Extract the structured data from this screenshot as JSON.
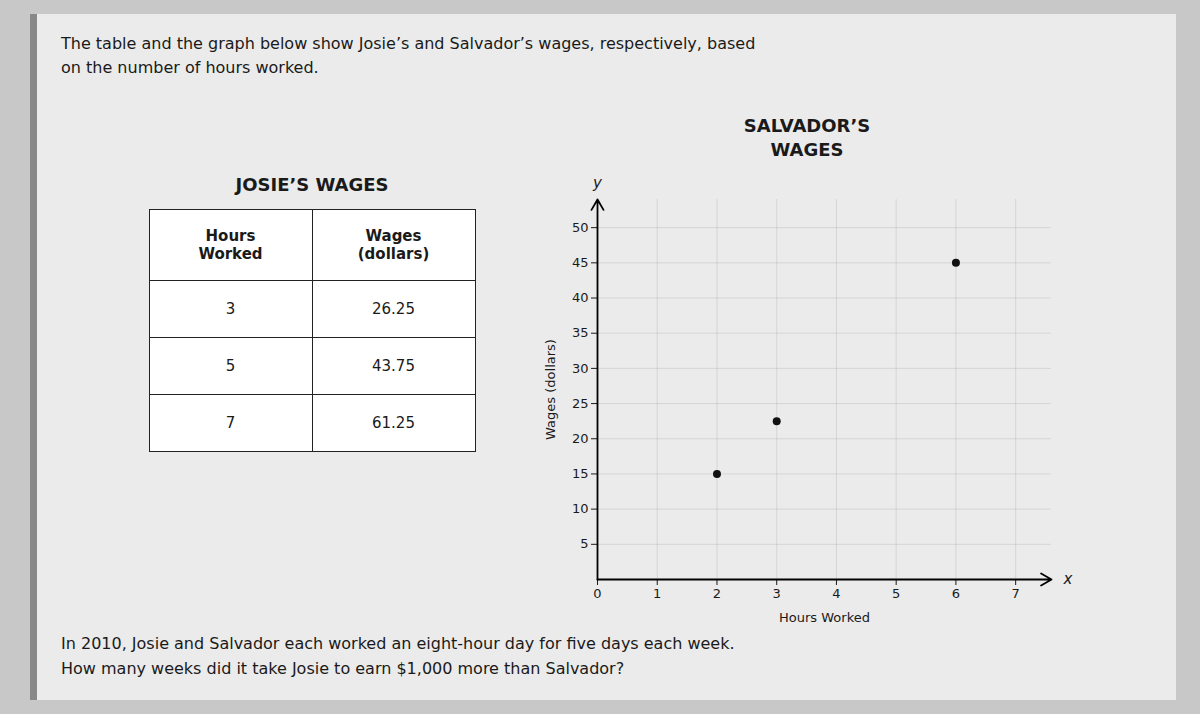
{
  "title": "The table and the graph below show Josie’s and Salvador’s wages, respectively, based\non the number of hours worked.",
  "caption": "In 2010, Josie and Salvador each worked an eight-hour day for five days each week.\nHow many weeks did it take Josie to earn $1,000 more than Salvador?",
  "chart_data": [
    {
      "type": "table",
      "title": "JOSIE’S WAGES",
      "columns": [
        "Hours\nWorked",
        "Wages\n(dollars)"
      ],
      "rows": [
        [
          3,
          26.25
        ],
        [
          5,
          43.75
        ],
        [
          7,
          61.25
        ]
      ]
    },
    {
      "type": "scatter",
      "title": "SALVADOR’S\nWAGES",
      "x": [
        2,
        3,
        6
      ],
      "values": [
        15,
        22.5,
        45
      ],
      "color": "#111111",
      "xlabel": "Hours Worked",
      "ylabel": "Wages (dollars)",
      "xlim": [
        0,
        7.6
      ],
      "ylim": [
        0,
        54
      ],
      "xticks": [
        0,
        1,
        2,
        3,
        4,
        5,
        6,
        7
      ],
      "yticks": [
        5,
        10,
        15,
        20,
        25,
        30,
        35,
        40,
        45,
        50
      ],
      "grid": true,
      "annotations": [
        "x",
        "y"
      ]
    }
  ]
}
